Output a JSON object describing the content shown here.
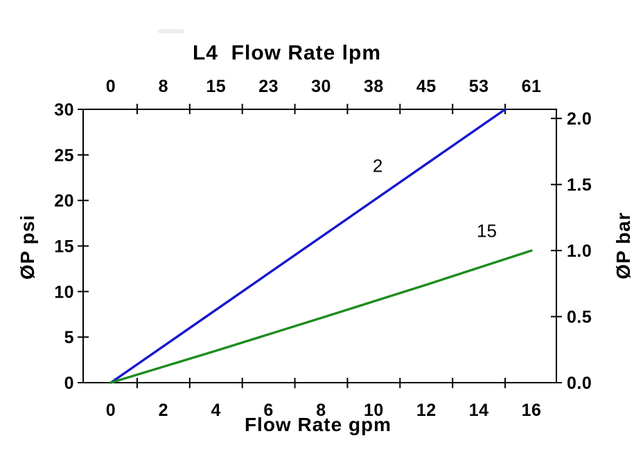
{
  "chart_data": {
    "type": "line",
    "title": "L4  Flow Rate lpm",
    "background_color": "#ffffff",
    "text_color": "#000000",
    "axis_color": "#000000",
    "grid": false,
    "legend": "inline-labels",
    "x_axis_bottom": {
      "title": "Flow Rate gpm",
      "tick_labels": [
        "0",
        "2",
        "4",
        "6",
        "8",
        "10",
        "12",
        "14",
        "16"
      ],
      "minor_ticks_gpm": [
        1,
        3,
        5,
        7,
        9,
        11,
        13,
        15
      ],
      "range_gpm": [
        -1.05,
        16.95
      ]
    },
    "x_axis_top": {
      "units": "lpm",
      "tick_labels": [
        "0",
        "8",
        "15",
        "23",
        "30",
        "38",
        "45",
        "53",
        "61"
      ]
    },
    "y_axis_left": {
      "title": "ØP psi",
      "tick_labels": [
        "0",
        "5",
        "10",
        "15",
        "20",
        "25",
        "30"
      ],
      "range_psi": [
        0,
        30
      ]
    },
    "y_axis_right": {
      "title": "ØP bar",
      "tick_labels": [
        "0.0",
        "0.5",
        "1.0",
        "1.5",
        "2.0"
      ],
      "psi_per_bar": 14.5
    },
    "series": [
      {
        "name": "2",
        "color": "#1717cf",
        "points_gpm_psi": [
          [
            0,
            0
          ],
          [
            15,
            30
          ]
        ],
        "label": {
          "text": "2",
          "x_gpm": 10.15,
          "y_psi": 23.8
        }
      },
      {
        "name": "15",
        "color": "#1e8c1e",
        "points_gpm_psi": [
          [
            0,
            0
          ],
          [
            4,
            3.5
          ],
          [
            8,
            7.1
          ],
          [
            12,
            10.75
          ],
          [
            16,
            14.5
          ]
        ],
        "label": {
          "text": "15",
          "x_gpm": 14.3,
          "y_psi": 16.6
        }
      }
    ]
  }
}
